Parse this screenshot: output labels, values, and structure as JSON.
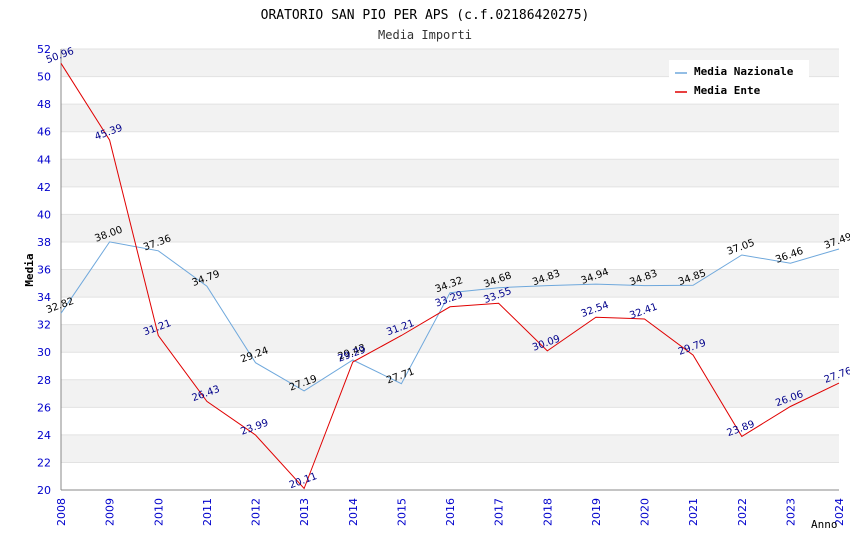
{
  "chart_data": {
    "type": "line",
    "title": "ORATORIO SAN PIO PER APS (c.f.02186420275)",
    "subtitle": "Media Importi",
    "xlabel": "Anno",
    "ylabel": "Media",
    "ylim": [
      20,
      52
    ],
    "y_ticks": [
      "20",
      "22",
      "24",
      "26",
      "28",
      "30",
      "32",
      "34",
      "36",
      "38",
      "40",
      "42",
      "44",
      "46",
      "48",
      "50",
      "52"
    ],
    "categories": [
      "2008",
      "2009",
      "2010",
      "2011",
      "2012",
      "2013",
      "2014",
      "2015",
      "2016",
      "2017",
      "2018",
      "2019",
      "2020",
      "2021",
      "2022",
      "2023",
      "2024"
    ],
    "legend_position": "top-right",
    "series": [
      {
        "name": "Media Nazionale",
        "color": "#6fa8dc",
        "label_color": "#000000",
        "values": [
          32.82,
          38.0,
          37.36,
          34.79,
          29.24,
          27.19,
          29.43,
          27.71,
          34.32,
          34.68,
          34.83,
          34.94,
          34.83,
          34.85,
          37.05,
          36.46,
          37.49
        ],
        "labels": [
          "32.82",
          "38.00",
          "37.36",
          "34.79",
          "29.24",
          "27.19",
          "29.43",
          "27.71",
          "34.32",
          "34.68",
          "34.83",
          "34.94",
          "34.83",
          "34.85",
          "37.05",
          "36.46",
          "37.49"
        ]
      },
      {
        "name": "Media Ente",
        "color": "#e00000",
        "label_color": "#00008b",
        "values": [
          50.96,
          45.39,
          31.21,
          26.43,
          23.99,
          20.11,
          29.29,
          31.21,
          33.29,
          33.55,
          30.09,
          32.54,
          32.41,
          29.79,
          23.89,
          26.06,
          27.76
        ],
        "labels": [
          "50.96",
          "45.39",
          "31.21",
          "26.43",
          "23.99",
          "20.11",
          "29.29",
          "31.21",
          "33.29",
          "33.55",
          "30.09",
          "32.54",
          "32.41",
          "29.79",
          "23.89",
          "26.06",
          "27.76"
        ]
      }
    ]
  }
}
